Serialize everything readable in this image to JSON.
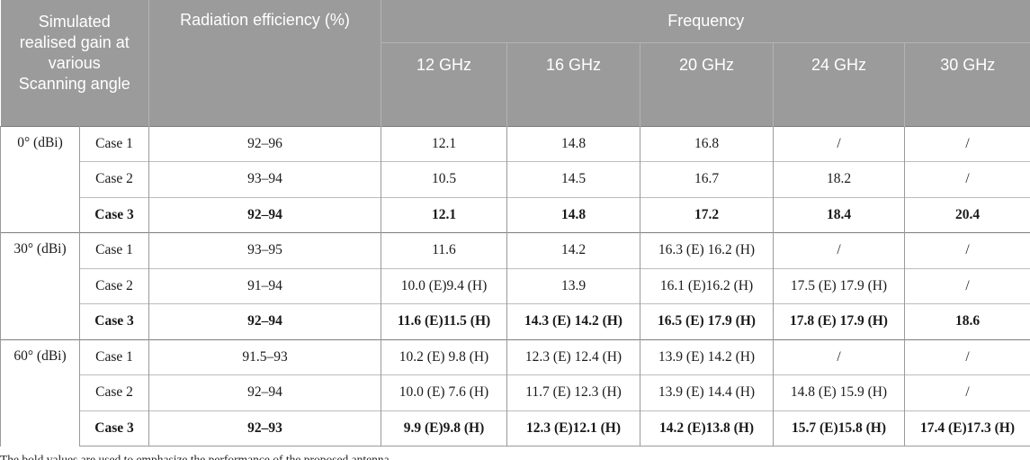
{
  "colors": {
    "header_bg": "#9b9b9b",
    "header_text": "#ffffff",
    "header_divider": "#b3b3b3",
    "border": "#9a9a9a",
    "row_border": "#bcbcbc",
    "group_border": "#7d7d7d",
    "body_text": "#1a1a1a"
  },
  "table": {
    "header": {
      "angle_col": "Simulated realised gain at various Scanning angle",
      "efficiency_col": "Radiation efficiency (%)",
      "frequency_group": "Frequency",
      "frequency_cols": [
        "12 GHz",
        "16 GHz",
        "20 GHz",
        "24 GHz",
        "30 GHz"
      ]
    },
    "groups": [
      {
        "angle": "0° (dBi)",
        "rows": [
          {
            "case": "Case 1",
            "efficiency": "92–96",
            "values": [
              "12.1",
              "14.8",
              "16.8",
              "/",
              "/"
            ],
            "bold": false
          },
          {
            "case": "Case 2",
            "efficiency": "93–94",
            "values": [
              "10.5",
              "14.5",
              "16.7",
              "18.2",
              "/"
            ],
            "bold": false
          },
          {
            "case": "Case 3",
            "efficiency": "92–94",
            "values": [
              "12.1",
              "14.8",
              "17.2",
              "18.4",
              "20.4"
            ],
            "bold": true
          }
        ]
      },
      {
        "angle": "30° (dBi)",
        "rows": [
          {
            "case": "Case 1",
            "efficiency": "93–95",
            "values": [
              "11.6",
              "14.2",
              "16.3 (E) 16.2 (H)",
              "/",
              "/"
            ],
            "bold": false
          },
          {
            "case": "Case 2",
            "efficiency": "91–94",
            "values": [
              "10.0 (E)9.4 (H)",
              "13.9",
              "16.1 (E)16.2 (H)",
              "17.5 (E) 17.9 (H)",
              "/"
            ],
            "bold": false
          },
          {
            "case": "Case 3",
            "efficiency": "92–94",
            "values": [
              "11.6 (E)11.5 (H)",
              "14.3 (E) 14.2 (H)",
              "16.5 (E) 17.9 (H)",
              "17.8 (E) 17.9 (H)",
              "18.6"
            ],
            "bold": true
          }
        ]
      },
      {
        "angle": "60° (dBi)",
        "rows": [
          {
            "case": "Case 1",
            "efficiency": "91.5–93",
            "values": [
              "10.2 (E) 9.8 (H)",
              "12.3 (E) 12.4 (H)",
              "13.9 (E) 14.2 (H)",
              "/",
              "/"
            ],
            "bold": false
          },
          {
            "case": "Case 2",
            "efficiency": "92–94",
            "values": [
              "10.0 (E) 7.6 (H)",
              "11.7 (E) 12.3 (H)",
              "13.9 (E) 14.4 (H)",
              "14.8 (E) 15.9 (H)",
              "/"
            ],
            "bold": false
          },
          {
            "case": "Case 3",
            "efficiency": "92–93",
            "values": [
              "9.9 (E)9.8 (H)",
              "12.3 (E)12.1 (H)",
              "14.2 (E)13.8 (H)",
              "15.7 (E)15.8 (H)",
              "17.4 (E)17.3 (H)"
            ],
            "bold": true
          }
        ]
      }
    ],
    "footnote": "The bold values are used to emphasize the performance of the proposed antenna."
  }
}
